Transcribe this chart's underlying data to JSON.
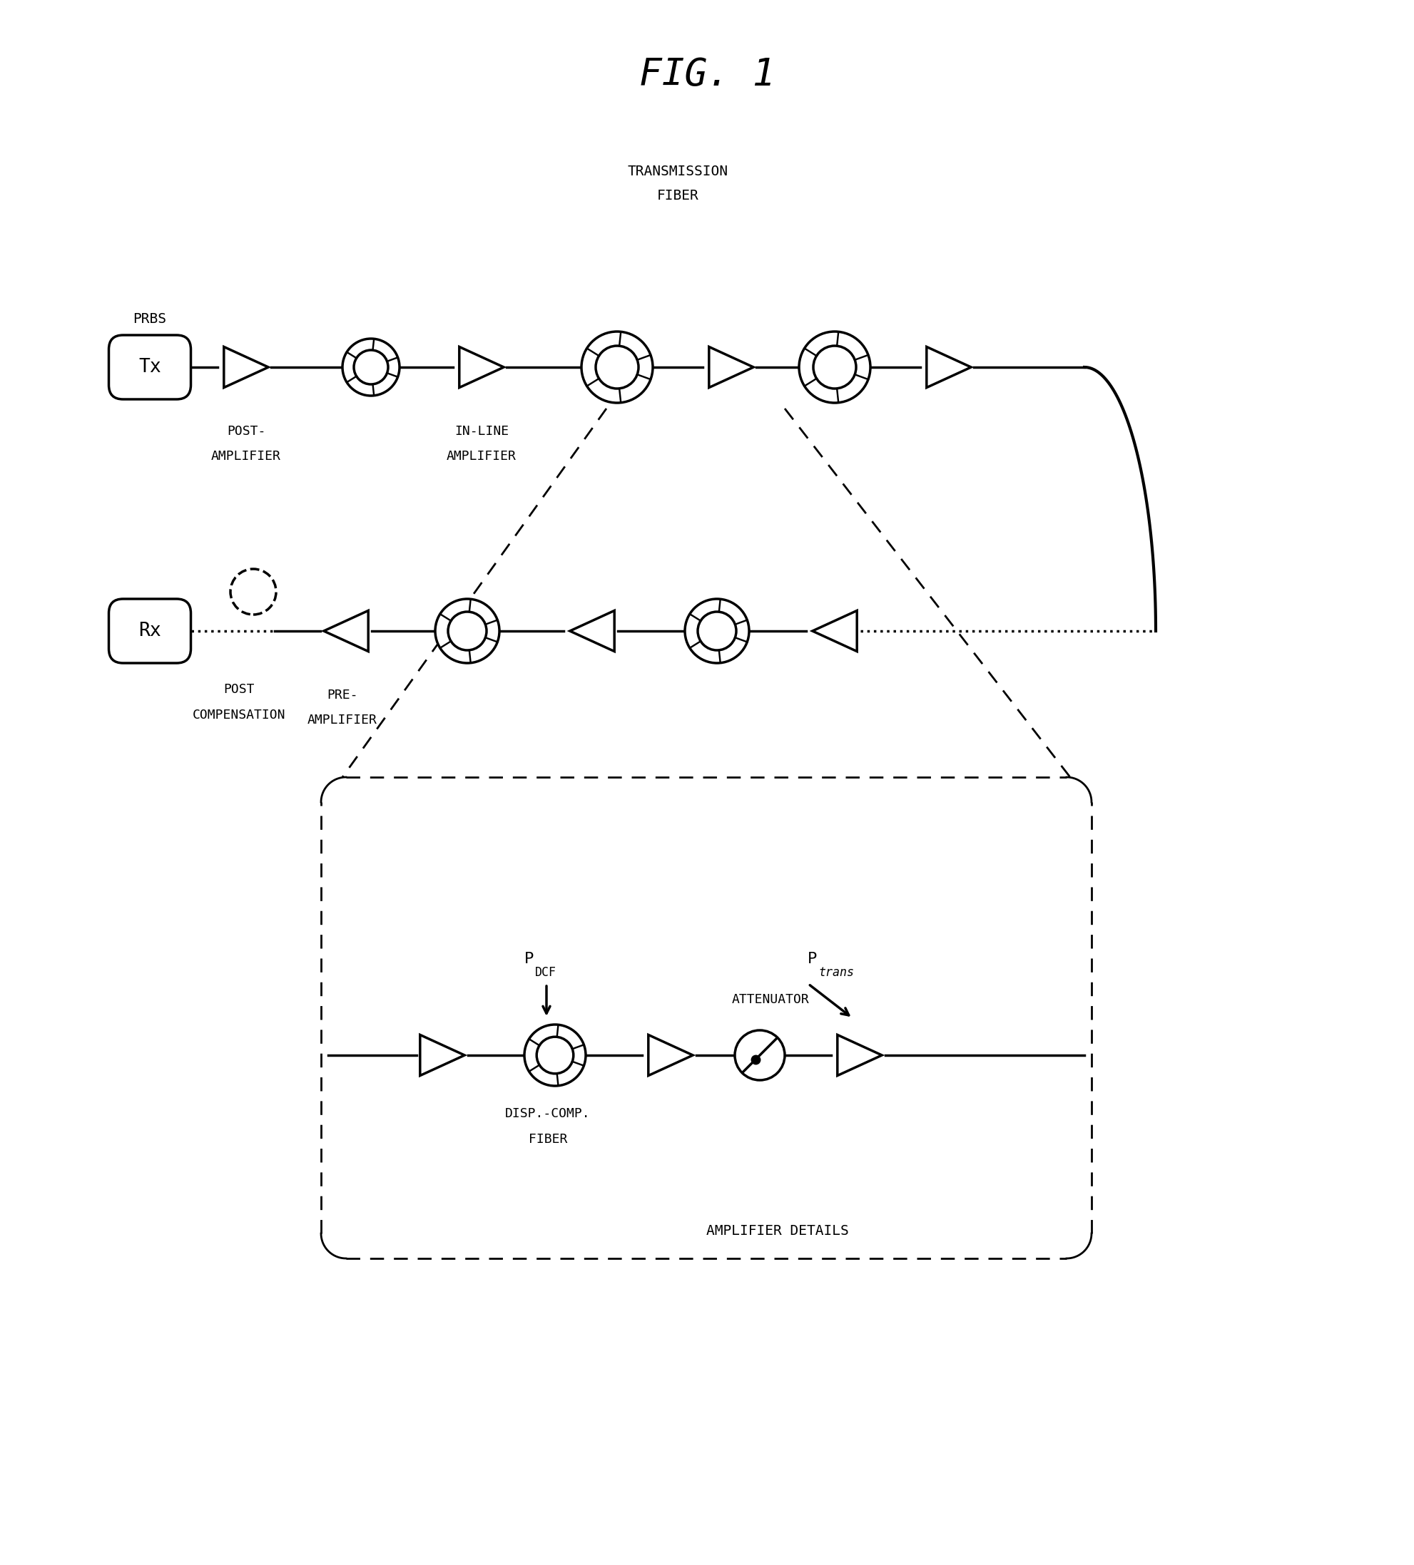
{
  "title": "FIG. 1",
  "bg_color": "#ffffff",
  "line_color": "#000000",
  "fig_width": 19.82,
  "fig_height": 21.95,
  "labels": {
    "prbs": "PRBS",
    "tx": "Tx",
    "rx": "Rx",
    "transmission_fiber_1": "TRANSMISSION",
    "transmission_fiber_2": "FIBER",
    "post_amplifier_1": "POST-",
    "post_amplifier_2": "AMPLIFIER",
    "inline_amplifier_1": "IN-LINE",
    "inline_amplifier_2": "AMPLIFIER",
    "post_compensation_1": "POST",
    "post_compensation_2": "COMPENSATION",
    "pre_amplifier_1": "PRE-",
    "pre_amplifier_2": "AMPLIFIER",
    "p_dcf": "P",
    "dcf_sub": "DCF",
    "p_trans": "P",
    "trans_sub": "trans",
    "attenuator": "ATTENUATOR",
    "disp_comp_1": "DISP.-COMP.",
    "disp_comp_2": "FIBER",
    "amp_details": "AMPLIFIER DETAILS"
  }
}
